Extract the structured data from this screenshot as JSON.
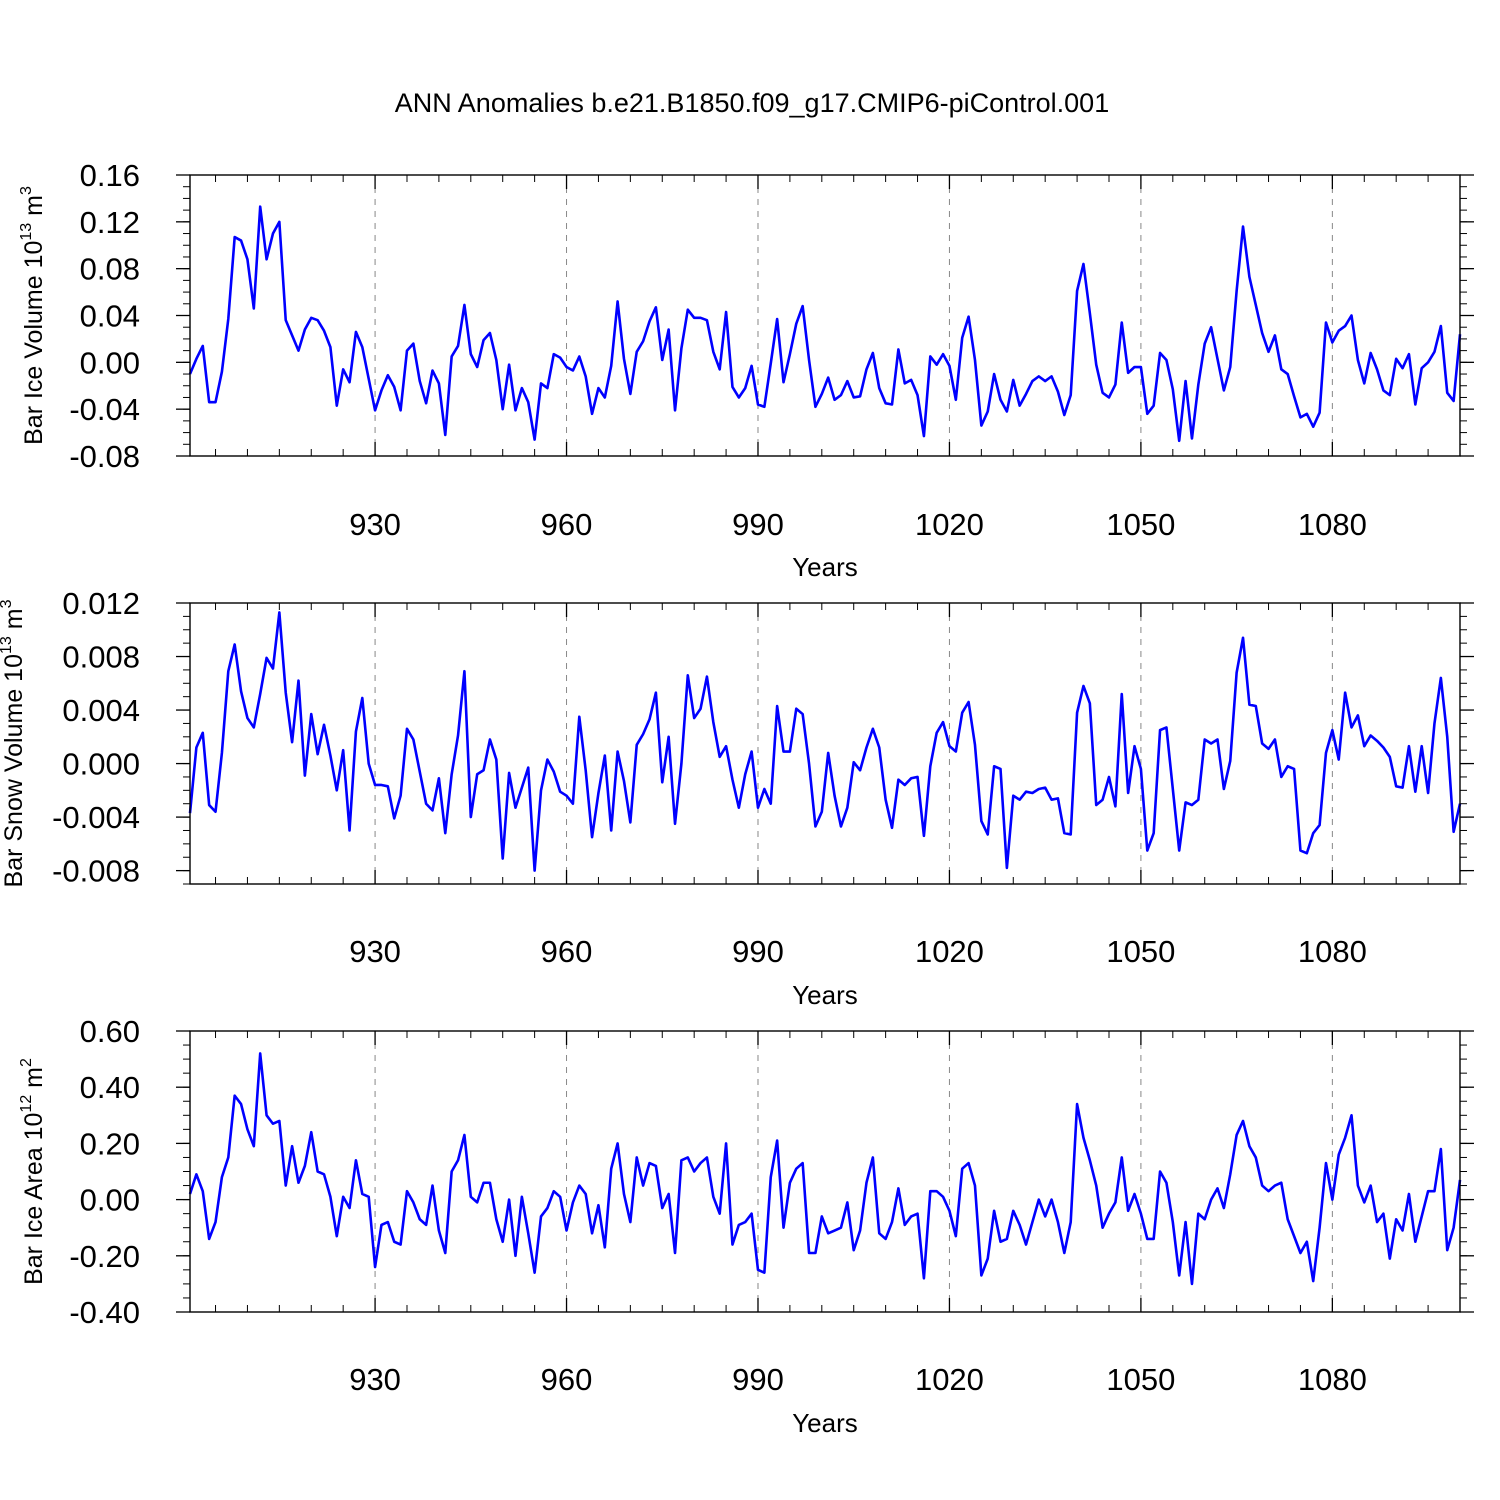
{
  "chart_data": [
    {
      "type": "line",
      "title": "ANN Anomalies b.e21.B1850.f09_g17.CMIP6-piControl.001",
      "ylabel": {
        "text": "Bar Ice Volume 10",
        "exp": "13",
        "unit": "m",
        "unit_exp": "3"
      },
      "xlabel": "Years",
      "xlim": [
        901,
        1100
      ],
      "ylim": [
        -0.08,
        0.16
      ],
      "yticks": [
        -0.08,
        -0.04,
        0.0,
        0.04,
        0.08,
        0.12,
        0.16
      ],
      "ytick_labels": [
        "-0.08",
        "-0.04",
        "0.00",
        "0.04",
        "0.08",
        "0.12",
        "0.16"
      ],
      "xticks": [
        930,
        960,
        990,
        1020,
        1050,
        1080
      ],
      "xtick_labels": [
        "930",
        "960",
        "990",
        "1020",
        "1050",
        "1080"
      ],
      "grid": "dashed vertical at major x ticks",
      "x_start": 901,
      "series": [
        {
          "name": "Bar Ice Volume",
          "color": "#0000ff",
          "values": [
            -0.01,
            0.003,
            0.014,
            -0.034,
            -0.034,
            -0.008,
            0.037,
            0.107,
            0.104,
            0.088,
            0.046,
            0.133,
            0.088,
            0.11,
            0.12,
            0.036,
            0.023,
            0.01,
            0.028,
            0.038,
            0.036,
            0.027,
            0.013,
            -0.037,
            -0.006,
            -0.017,
            0.026,
            0.013,
            -0.014,
            -0.041,
            -0.024,
            -0.011,
            -0.021,
            -0.041,
            0.01,
            0.016,
            -0.016,
            -0.035,
            -0.007,
            -0.018,
            -0.062,
            0.005,
            0.014,
            0.049,
            0.007,
            -0.004,
            0.019,
            0.025,
            0.002,
            -0.04,
            -0.002,
            -0.041,
            -0.022,
            -0.034,
            -0.066,
            -0.018,
            -0.022,
            0.007,
            0.004,
            -0.004,
            -0.007,
            0.005,
            -0.012,
            -0.044,
            -0.022,
            -0.03,
            -0.003,
            0.052,
            0.003,
            -0.027,
            0.009,
            0.018,
            0.035,
            0.047,
            0.002,
            0.028,
            -0.041,
            0.012,
            0.045,
            0.038,
            0.038,
            0.036,
            0.009,
            -0.006,
            0.043,
            -0.021,
            -0.03,
            -0.022,
            -0.003,
            -0.036,
            -0.038,
            -0.001,
            0.037,
            -0.017,
            0.007,
            0.033,
            0.048,
            0.002,
            -0.038,
            -0.027,
            -0.013,
            -0.032,
            -0.028,
            -0.016,
            -0.03,
            -0.029,
            -0.006,
            0.008,
            -0.022,
            -0.035,
            -0.036,
            0.011,
            -0.018,
            -0.015,
            -0.028,
            -0.063,
            0.005,
            -0.002,
            0.007,
            -0.003,
            -0.032,
            0.021,
            0.039,
            0.002,
            -0.054,
            -0.042,
            -0.01,
            -0.032,
            -0.042,
            -0.015,
            -0.037,
            -0.027,
            -0.016,
            -0.012,
            -0.016,
            -0.012,
            -0.025,
            -0.045,
            -0.028,
            0.061,
            0.084,
            0.042,
            -0.002,
            -0.026,
            -0.03,
            -0.019,
            0.034,
            -0.009,
            -0.004,
            -0.004,
            -0.044,
            -0.037,
            0.008,
            0.002,
            -0.023,
            -0.067,
            -0.016,
            -0.065,
            -0.019,
            0.016,
            0.03,
            0.003,
            -0.024,
            -0.004,
            0.061,
            0.116,
            0.073,
            0.049,
            0.025,
            0.009,
            0.023,
            -0.006,
            -0.01,
            -0.029,
            -0.047,
            -0.044,
            -0.055,
            -0.043,
            0.034,
            0.017,
            0.027,
            0.031,
            0.04,
            0.002,
            -0.018,
            0.008,
            -0.006,
            -0.024,
            -0.028,
            0.003,
            -0.005,
            0.007,
            -0.036,
            -0.005,
            0.0,
            0.009,
            0.031,
            -0.026,
            -0.033,
            0.024
          ]
        }
      ]
    },
    {
      "type": "line",
      "ylabel": {
        "text": "Bar Snow Volume 10",
        "exp": "13",
        "unit": "m",
        "unit_exp": "3"
      },
      "xlabel": "Years",
      "xlim": [
        901,
        1100
      ],
      "ylim": [
        -0.009,
        0.012
      ],
      "yticks": [
        -0.008,
        -0.004,
        0.0,
        0.004,
        0.008,
        0.012
      ],
      "ytick_labels": [
        "-0.008",
        "-0.004",
        "0.000",
        "0.004",
        "0.008",
        "0.012"
      ],
      "xticks": [
        930,
        960,
        990,
        1020,
        1050,
        1080
      ],
      "xtick_labels": [
        "930",
        "960",
        "990",
        "1020",
        "1050",
        "1080"
      ],
      "grid": "dashed vertical at major x ticks",
      "x_start": 901,
      "series": [
        {
          "name": "Bar Snow Volume",
          "color": "#0000ff",
          "values": [
            -0.0037,
            0.0012,
            0.0023,
            -0.0031,
            -0.0036,
            0.0008,
            0.0069,
            0.0089,
            0.0054,
            0.0034,
            0.0027,
            0.0052,
            0.0079,
            0.0071,
            0.0113,
            0.0053,
            0.0016,
            0.0062,
            -0.0009,
            0.0037,
            0.0007,
            0.0029,
            0.0006,
            -0.002,
            0.001,
            -0.005,
            0.0024,
            0.0049,
            0.0,
            -0.0016,
            -0.0016,
            -0.0017,
            -0.0041,
            -0.0024,
            0.0026,
            0.0018,
            -0.0006,
            -0.003,
            -0.0035,
            -0.0011,
            -0.0052,
            -0.0008,
            0.0021,
            0.0069,
            -0.004,
            -0.0008,
            -0.0005,
            0.0018,
            0.0003,
            -0.0071,
            -0.0007,
            -0.0033,
            -0.0018,
            -0.0003,
            -0.008,
            -0.002,
            0.0003,
            -0.0006,
            -0.0021,
            -0.0024,
            -0.003,
            0.0035,
            -0.0005,
            -0.0055,
            -0.0022,
            0.0006,
            -0.005,
            0.0009,
            -0.0013,
            -0.0044,
            0.0014,
            0.0022,
            0.0033,
            0.0053,
            -0.0014,
            0.002,
            -0.0045,
            0.0,
            0.0066,
            0.0034,
            0.0041,
            0.0065,
            0.0031,
            0.0005,
            0.0013,
            -0.0012,
            -0.0033,
            -0.0008,
            0.0009,
            -0.0033,
            -0.0019,
            -0.003,
            0.0043,
            0.0009,
            0.0009,
            0.0041,
            0.0037,
            0.0,
            -0.0047,
            -0.0036,
            0.0008,
            -0.0024,
            -0.0047,
            -0.0033,
            0.0001,
            -0.0005,
            0.0012,
            0.0026,
            0.0012,
            -0.0027,
            -0.0048,
            -0.0012,
            -0.0016,
            -0.0011,
            -0.001,
            -0.0054,
            -0.0002,
            0.0023,
            0.0031,
            0.0013,
            0.0009,
            0.0038,
            0.0046,
            0.0014,
            -0.0043,
            -0.0053,
            -0.0002,
            -0.0004,
            -0.0078,
            -0.0024,
            -0.0027,
            -0.0021,
            -0.0022,
            -0.0019,
            -0.0018,
            -0.0027,
            -0.0026,
            -0.0052,
            -0.0053,
            0.0038,
            0.0058,
            0.0045,
            -0.0031,
            -0.0027,
            -0.001,
            -0.0032,
            0.0052,
            -0.0022,
            0.0013,
            -0.0004,
            -0.0065,
            -0.0052,
            0.0025,
            0.0027,
            -0.0019,
            -0.0065,
            -0.0029,
            -0.0031,
            -0.0027,
            0.0018,
            0.0015,
            0.0018,
            -0.0019,
            0.0002,
            0.0068,
            0.0094,
            0.0044,
            0.0043,
            0.0015,
            0.0011,
            0.0018,
            -0.001,
            -0.0002,
            -0.0004,
            -0.0065,
            -0.0067,
            -0.0052,
            -0.0046,
            0.0008,
            0.0025,
            0.0003,
            0.0053,
            0.0027,
            0.0036,
            0.0013,
            0.0021,
            0.0017,
            0.0012,
            0.0005,
            -0.0017,
            -0.0018,
            0.0013,
            -0.0021,
            0.0013,
            -0.0022,
            0.003,
            0.0064,
            0.002,
            -0.0051,
            -0.003
          ]
        }
      ]
    },
    {
      "type": "line",
      "ylabel": {
        "text": "Bar Ice Area 10",
        "exp": "12",
        "unit": "m",
        "unit_exp": "2"
      },
      "xlabel": "Years",
      "xlim": [
        901,
        1100
      ],
      "ylim": [
        -0.4,
        0.6
      ],
      "yticks": [
        -0.4,
        -0.2,
        0.0,
        0.2,
        0.4,
        0.6
      ],
      "ytick_labels": [
        "-0.40",
        "-0.20",
        "0.00",
        "0.20",
        "0.40",
        "0.60"
      ],
      "xticks": [
        930,
        960,
        990,
        1020,
        1050,
        1080
      ],
      "xtick_labels": [
        "930",
        "960",
        "990",
        "1020",
        "1050",
        "1080"
      ],
      "grid": "dashed vertical at major x ticks",
      "x_start": 901,
      "series": [
        {
          "name": "Bar Ice Area",
          "color": "#0000ff",
          "values": [
            0.02,
            0.09,
            0.03,
            -0.14,
            -0.08,
            0.08,
            0.15,
            0.37,
            0.34,
            0.25,
            0.19,
            0.52,
            0.3,
            0.27,
            0.28,
            0.05,
            0.19,
            0.06,
            0.12,
            0.24,
            0.1,
            0.09,
            0.01,
            -0.13,
            0.01,
            -0.03,
            0.14,
            0.02,
            0.01,
            -0.24,
            -0.09,
            -0.08,
            -0.15,
            -0.16,
            0.03,
            -0.01,
            -0.07,
            -0.09,
            0.05,
            -0.11,
            -0.19,
            0.1,
            0.14,
            0.23,
            0.01,
            -0.01,
            0.06,
            0.06,
            -0.07,
            -0.15,
            0.0,
            -0.2,
            0.01,
            -0.12,
            -0.26,
            -0.06,
            -0.03,
            0.03,
            0.01,
            -0.11,
            -0.01,
            0.05,
            0.02,
            -0.12,
            -0.02,
            -0.17,
            0.11,
            0.2,
            0.02,
            -0.08,
            0.15,
            0.05,
            0.13,
            0.12,
            -0.03,
            0.02,
            -0.19,
            0.14,
            0.15,
            0.1,
            0.13,
            0.15,
            0.01,
            -0.05,
            0.2,
            -0.16,
            -0.09,
            -0.08,
            -0.05,
            -0.25,
            -0.26,
            0.08,
            0.21,
            -0.1,
            0.06,
            0.11,
            0.13,
            -0.19,
            -0.19,
            -0.06,
            -0.12,
            -0.11,
            -0.1,
            -0.01,
            -0.18,
            -0.11,
            0.06,
            0.15,
            -0.12,
            -0.14,
            -0.08,
            0.04,
            -0.09,
            -0.06,
            -0.05,
            -0.28,
            0.03,
            0.03,
            0.01,
            -0.04,
            -0.13,
            0.11,
            0.13,
            0.05,
            -0.27,
            -0.21,
            -0.04,
            -0.15,
            -0.14,
            -0.04,
            -0.09,
            -0.16,
            -0.08,
            0.0,
            -0.06,
            0.0,
            -0.08,
            -0.19,
            -0.08,
            0.34,
            0.22,
            0.14,
            0.05,
            -0.1,
            -0.05,
            -0.01,
            0.15,
            -0.04,
            0.02,
            -0.05,
            -0.14,
            -0.14,
            0.1,
            0.06,
            -0.08,
            -0.27,
            -0.08,
            -0.3,
            -0.05,
            -0.07,
            0.0,
            0.04,
            -0.03,
            0.09,
            0.23,
            0.28,
            0.19,
            0.15,
            0.05,
            0.03,
            0.05,
            0.06,
            -0.07,
            -0.13,
            -0.19,
            -0.15,
            -0.29,
            -0.1,
            0.13,
            0.0,
            0.16,
            0.22,
            0.3,
            0.05,
            -0.01,
            0.05,
            -0.08,
            -0.05,
            -0.21,
            -0.07,
            -0.11,
            0.02,
            -0.15,
            -0.06,
            0.03,
            0.03,
            0.18,
            -0.18,
            -0.1,
            0.07
          ]
        }
      ]
    }
  ]
}
